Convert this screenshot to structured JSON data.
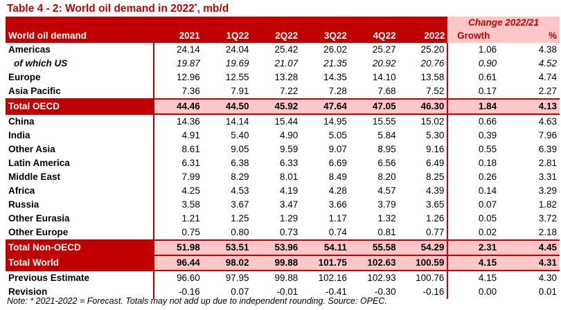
{
  "title": {
    "main": "Table 4 - 2: World oil demand in 2022",
    "star": "*",
    "suffix": ", mb/d"
  },
  "header": {
    "change_label": "Change 2022/21",
    "first_col": "World oil demand",
    "columns": [
      "2021",
      "1Q22",
      "2Q22",
      "3Q22",
      "4Q22",
      "2022",
      "Growth",
      "%"
    ]
  },
  "rows": [
    {
      "label": "Americas",
      "values": [
        "24.14",
        "24.04",
        "25.42",
        "26.02",
        "25.27",
        "25.20",
        "1.06",
        "4.38"
      ]
    },
    {
      "label": "of which US",
      "values": [
        "19.87",
        "19.69",
        "21.07",
        "21.35",
        "20.92",
        "20.76",
        "0.90",
        "4.52"
      ]
    },
    {
      "label": "Europe",
      "values": [
        "12.96",
        "12.55",
        "13.28",
        "14.35",
        "14.10",
        "13.58",
        "0.61",
        "4.74"
      ]
    },
    {
      "label": "Asia Pacific",
      "values": [
        "7.36",
        "7.91",
        "7.22",
        "7.28",
        "7.68",
        "7.52",
        "0.17",
        "2.27"
      ]
    },
    {
      "label": "Total OECD",
      "values": [
        "44.46",
        "44.50",
        "45.92",
        "47.64",
        "47.05",
        "46.30",
        "1.84",
        "4.13"
      ]
    },
    {
      "label": "China",
      "values": [
        "14.36",
        "14.14",
        "15.44",
        "14.95",
        "15.55",
        "15.02",
        "0.66",
        "4.63"
      ]
    },
    {
      "label": "India",
      "values": [
        "4.91",
        "5.40",
        "4.90",
        "5.05",
        "5.84",
        "5.30",
        "0.39",
        "7.96"
      ]
    },
    {
      "label": "Other Asia",
      "values": [
        "8.61",
        "9.05",
        "9.59",
        "9.07",
        "8.95",
        "9.16",
        "0.55",
        "6.39"
      ]
    },
    {
      "label": "Latin America",
      "values": [
        "6.31",
        "6.38",
        "6.33",
        "6.69",
        "6.56",
        "6.49",
        "0.18",
        "2.81"
      ]
    },
    {
      "label": "Middle East",
      "values": [
        "7.99",
        "8.29",
        "8.01",
        "8.49",
        "8.20",
        "8.25",
        "0.26",
        "3.31"
      ]
    },
    {
      "label": "Africa",
      "values": [
        "4.25",
        "4.53",
        "4.19",
        "4.28",
        "4.57",
        "4.39",
        "0.14",
        "3.29"
      ]
    },
    {
      "label": "Russia",
      "values": [
        "3.58",
        "3.67",
        "3.47",
        "3.66",
        "3.79",
        "3.65",
        "0.07",
        "1.82"
      ]
    },
    {
      "label": "Other Eurasia",
      "values": [
        "1.21",
        "1.25",
        "1.29",
        "1.17",
        "1.32",
        "1.26",
        "0.05",
        "3.72"
      ]
    },
    {
      "label": "Other Europe",
      "values": [
        "0.75",
        "0.80",
        "0.73",
        "0.74",
        "0.81",
        "0.77",
        "0.02",
        "2.18"
      ]
    },
    {
      "label": "Total Non-OECD",
      "values": [
        "51.98",
        "53.51",
        "53.96",
        "54.11",
        "55.58",
        "54.29",
        "2.31",
        "4.45"
      ]
    },
    {
      "label": "Total World",
      "values": [
        "96.44",
        "98.02",
        "99.88",
        "101.75",
        "102.63",
        "100.59",
        "4.15",
        "4.31"
      ]
    },
    {
      "label": "Previous Estimate",
      "values": [
        "96.60",
        "97.95",
        "99.88",
        "102.16",
        "102.93",
        "100.76",
        "4.15",
        "4.30"
      ]
    },
    {
      "label": "Revision",
      "values": [
        "-0.16",
        "0.07",
        "-0.01",
        "-0.41",
        "-0.30",
        "-0.16",
        "0.00",
        "0.01"
      ]
    }
  ],
  "note": "Note: * 2021-2022 = Forecast. Totals may not add up due to independent rounding. Source: OPEC.",
  "colors": {
    "accent": "#c00000",
    "highlight": "#ffc7c7"
  }
}
